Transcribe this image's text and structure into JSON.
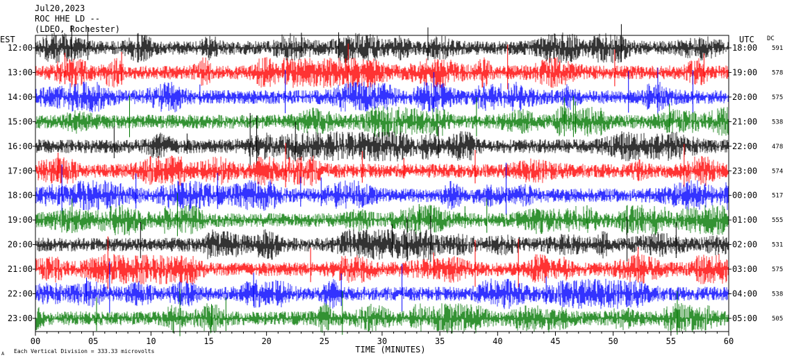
{
  "header": {
    "date": "Jul20,2023",
    "station": "ROC HHE LD --",
    "location": "(LDEO, Rochester)"
  },
  "left_zone": "EST",
  "right_zone": "UTC",
  "dc_header": "DC",
  "footer": {
    "scale_note": "Each Vertical Division =  333.33 microvolts",
    "corner_mark": "A"
  },
  "colors": {
    "trace_cycle": [
      "#000000",
      "#ff0000",
      "#0000ff",
      "#007700"
    ],
    "axis": "#000000",
    "background": "#ffffff"
  },
  "chart_data": {
    "type": "seismogram",
    "xlabel": "TIME (MINUTES)",
    "xlim": [
      0,
      60
    ],
    "x_ticks": [
      "00",
      "05",
      "10",
      "15",
      "20",
      "25",
      "30",
      "35",
      "40",
      "45",
      "50",
      "55",
      "60"
    ],
    "grid": false,
    "rows": [
      {
        "est": "12:00",
        "utc": "18:00",
        "dc": "591"
      },
      {
        "est": "13:00",
        "utc": "19:00",
        "dc": "578"
      },
      {
        "est": "14:00",
        "utc": "20:00",
        "dc": "575"
      },
      {
        "est": "15:00",
        "utc": "21:00",
        "dc": "538"
      },
      {
        "est": "16:00",
        "utc": "22:00",
        "dc": "478"
      },
      {
        "est": "17:00",
        "utc": "23:00",
        "dc": "574"
      },
      {
        "est": "18:00",
        "utc": "00:00",
        "dc": "517"
      },
      {
        "est": "19:00",
        "utc": "01:00",
        "dc": "555"
      },
      {
        "est": "20:00",
        "utc": "02:00",
        "dc": "531"
      },
      {
        "est": "21:00",
        "utc": "03:00",
        "dc": "575"
      },
      {
        "est": "22:00",
        "utc": "04:00",
        "dc": "538"
      },
      {
        "est": "23:00",
        "utc": "05:00",
        "dc": "505"
      }
    ]
  }
}
